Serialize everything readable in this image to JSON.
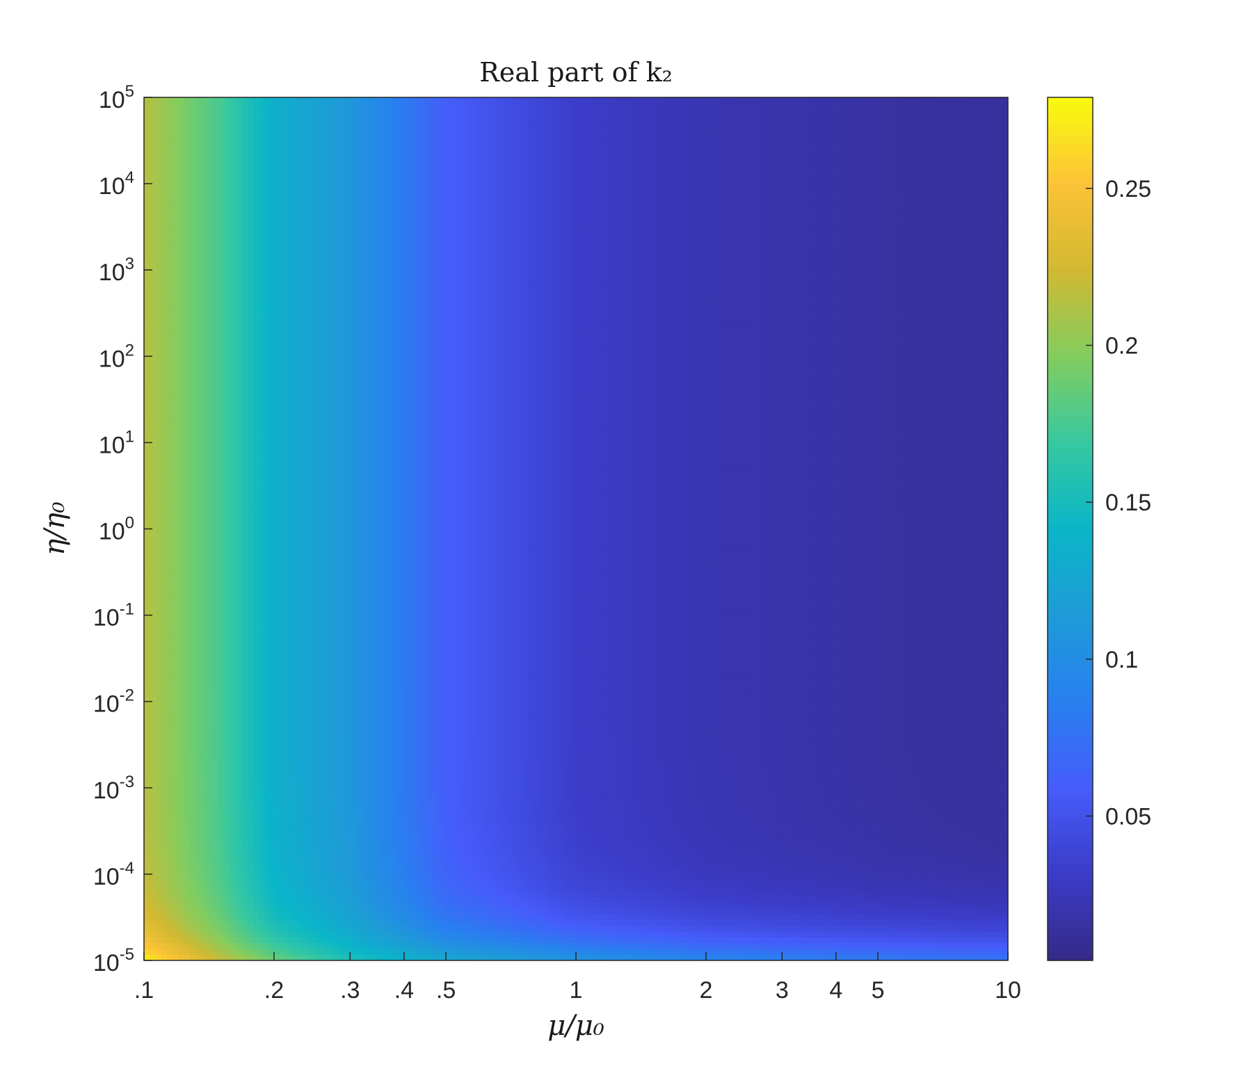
{
  "chart_data": {
    "type": "heatmap",
    "title": "Real part of k₂",
    "xlabel": "μ/μ₀",
    "ylabel": "η/η₀",
    "x_scale": "log",
    "y_scale": "log",
    "xlim": [
      0.1,
      10
    ],
    "ylim": [
      1e-05,
      100000
    ],
    "x_ticks": [
      {
        "value": 0.1,
        "label": ".1"
      },
      {
        "value": 0.2,
        "label": ".2"
      },
      {
        "value": 0.3,
        "label": ".3"
      },
      {
        "value": 0.4,
        "label": ".4"
      },
      {
        "value": 0.5,
        "label": ".5"
      },
      {
        "value": 1,
        "label": "1"
      },
      {
        "value": 2,
        "label": "2"
      },
      {
        "value": 3,
        "label": "3"
      },
      {
        "value": 4,
        "label": "4"
      },
      {
        "value": 5,
        "label": "5"
      },
      {
        "value": 10,
        "label": "10"
      }
    ],
    "y_ticks": [
      {
        "exponent": -5,
        "base": "10",
        "sup": "-5"
      },
      {
        "exponent": -4,
        "base": "10",
        "sup": "-4"
      },
      {
        "exponent": -3,
        "base": "10",
        "sup": "-3"
      },
      {
        "exponent": -2,
        "base": "10",
        "sup": "-2"
      },
      {
        "exponent": -1,
        "base": "10",
        "sup": "-1"
      },
      {
        "exponent": 0,
        "base": "10",
        "sup": "0"
      },
      {
        "exponent": 1,
        "base": "10",
        "sup": "1"
      },
      {
        "exponent": 2,
        "base": "10",
        "sup": "2"
      },
      {
        "exponent": 3,
        "base": "10",
        "sup": "3"
      },
      {
        "exponent": 4,
        "base": "10",
        "sup": "4"
      },
      {
        "exponent": 5,
        "base": "10",
        "sup": "5"
      }
    ],
    "colorbar": {
      "colormap": "parula",
      "range": [
        0.004,
        0.279
      ],
      "ticks": [
        {
          "value": 0.05,
          "label": "0.05"
        },
        {
          "value": 0.1,
          "label": "0.1"
        },
        {
          "value": 0.15,
          "label": "0.15"
        },
        {
          "value": 0.2,
          "label": "0.2"
        },
        {
          "value": 0.25,
          "label": "0.25"
        }
      ]
    },
    "field_profile": {
      "x_values": [
        0.1,
        0.15,
        0.2,
        0.3,
        0.5,
        1,
        2,
        5,
        10
      ],
      "values_at_high_eta": [
        0.215,
        0.175,
        0.135,
        0.11,
        0.06,
        0.032,
        0.022,
        0.016,
        0.013
      ],
      "values_at_eta_1e-5": [
        0.275,
        0.22,
        0.19,
        0.155,
        0.13,
        0.11,
        0.095,
        0.085,
        0.08
      ]
    },
    "grid": false
  },
  "colors": {
    "axis": "#262626",
    "background": "#ffffff"
  }
}
